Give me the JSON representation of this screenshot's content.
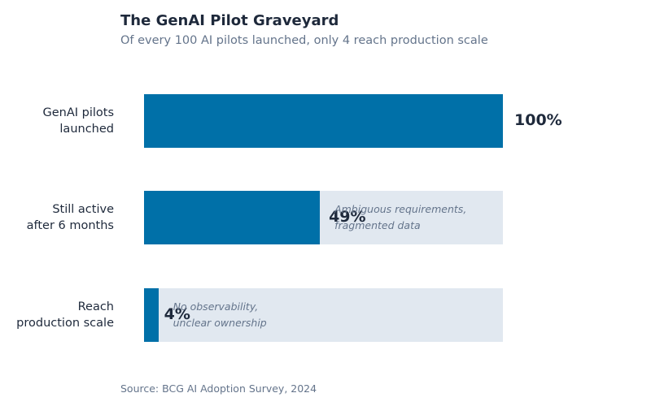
{
  "chart_data": {
    "type": "bar",
    "orientation": "horizontal",
    "title": "The GenAI Pilot Graveyard",
    "subtitle": "Of every 100 AI pilots launched, only 4 reach production scale",
    "categories": [
      "GenAI pilots\nlaunched",
      "Still active\nafter 6 months",
      "Reach\nproduction scale"
    ],
    "values": [
      100,
      49,
      4
    ],
    "value_labels": [
      "100%",
      "49%",
      "4%"
    ],
    "annotations": [
      null,
      "Ambiguous requirements,\nfragmented data",
      "No observability,\nunclear ownership"
    ],
    "color": "#0070a8",
    "track_color": "#e1e8f0",
    "xlim": [
      0,
      100
    ],
    "source": "Source: BCG AI Adoption Survey, 2024"
  }
}
